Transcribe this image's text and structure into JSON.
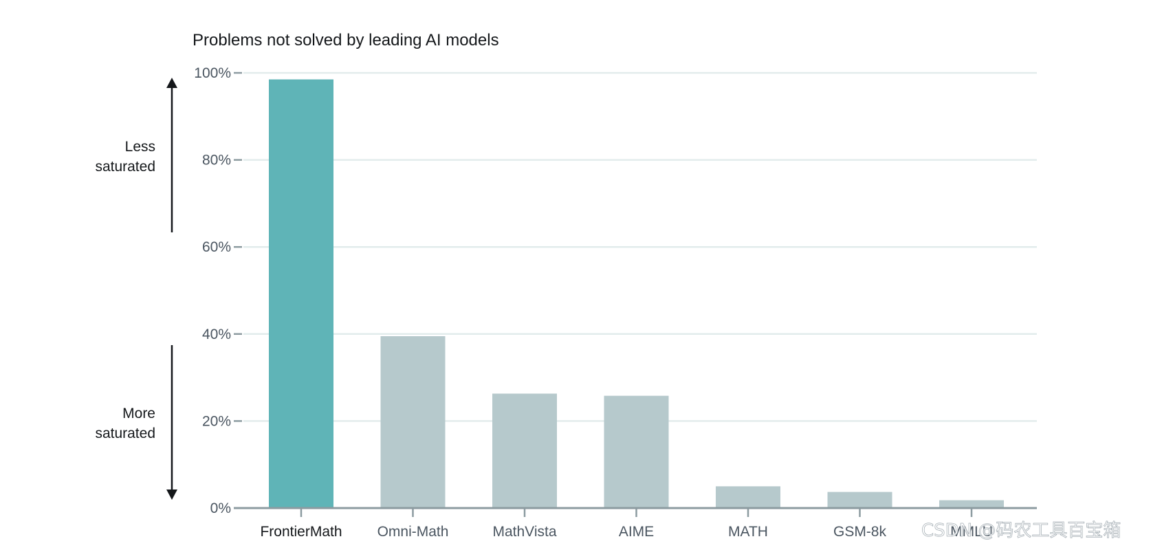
{
  "chart_data": {
    "type": "bar",
    "title": "Problems not solved by leading AI models",
    "categories": [
      "FrontierMath",
      "Omni-Math",
      "MathVista",
      "AIME",
      "MATH",
      "GSM-8k",
      "MMLU"
    ],
    "values": [
      98.5,
      39.5,
      26.3,
      25.8,
      5.0,
      3.7,
      1.8
    ],
    "highlight_category": "FrontierMath",
    "ylim": [
      0,
      100
    ],
    "yticks": [
      0,
      20,
      40,
      60,
      80,
      100
    ],
    "ytick_labels": [
      "0%",
      "20%",
      "40%",
      "60%",
      "80%",
      "100%"
    ],
    "xlabel": "",
    "ylabel": "",
    "grid": true,
    "legend": "none",
    "colors": {
      "highlight": "#5fb4b7",
      "default": "#b6c9cc",
      "grid": "#e2ecec",
      "axis": "#8c9ba0",
      "text": "#4a5560",
      "strong_text": "#14171a"
    },
    "annotations": {
      "upper": [
        "Less",
        "saturated"
      ],
      "lower": [
        "More",
        "saturated"
      ]
    }
  },
  "watermark": "CSDN @码农工具百宝箱"
}
